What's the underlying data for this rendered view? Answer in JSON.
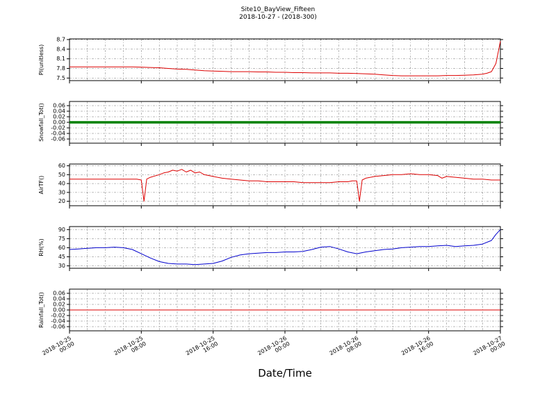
{
  "chart_data": {
    "type": "line",
    "title": "Site10_BayView_Fifteen",
    "subtitle": "2018-10-27 - (2018-300)",
    "xlabel": "Date/Time",
    "grid": "dash-dot",
    "legend": "none",
    "x_axis": {
      "min": 0,
      "max": 48,
      "unit": "hours since 2018-10-25 00:00",
      "grid_interval_hours": 2,
      "major_ticks": [
        {
          "h": 0,
          "date": "2018-10-25",
          "time": "00:00"
        },
        {
          "h": 8,
          "date": "2018-10-25",
          "time": "08:00"
        },
        {
          "h": 16,
          "date": "2018-10-25",
          "time": "16:00"
        },
        {
          "h": 24,
          "date": "2018-10-26",
          "time": "00:00"
        },
        {
          "h": 32,
          "date": "2018-10-26",
          "time": "08:00"
        },
        {
          "h": 40,
          "date": "2018-10-26",
          "time": "16:00"
        },
        {
          "h": 48,
          "date": "2018-10-27",
          "time": "00:00"
        }
      ]
    },
    "panels": [
      {
        "id": "pi",
        "ylabel": "PI(unitless)",
        "color": "#dd0000",
        "line_width": 1,
        "ylim": [
          7.42,
          8.72
        ],
        "yticks": [
          7.5,
          7.8,
          8.1,
          8.4,
          8.7
        ],
        "ytick_labels": [
          "7.5",
          "7.8",
          "8.1",
          "8.4",
          "8.7"
        ],
        "x": [
          0,
          1,
          2,
          3,
          4,
          5,
          6,
          7,
          8,
          9,
          10,
          11,
          12,
          13,
          14,
          15,
          16,
          17,
          18,
          19,
          20,
          21,
          22,
          23,
          24,
          25,
          26,
          27,
          28,
          29,
          30,
          31,
          32,
          33,
          34,
          35,
          36,
          37,
          38,
          39,
          40,
          41,
          42,
          43,
          44,
          45,
          46,
          46.5,
          47,
          47.5,
          47.75,
          48
        ],
        "y": [
          7.85,
          7.85,
          7.85,
          7.85,
          7.85,
          7.85,
          7.85,
          7.85,
          7.84,
          7.83,
          7.82,
          7.8,
          7.78,
          7.77,
          7.75,
          7.73,
          7.72,
          7.71,
          7.7,
          7.7,
          7.7,
          7.69,
          7.69,
          7.68,
          7.68,
          7.67,
          7.67,
          7.66,
          7.66,
          7.66,
          7.65,
          7.65,
          7.64,
          7.63,
          7.62,
          7.6,
          7.58,
          7.57,
          7.57,
          7.57,
          7.57,
          7.57,
          7.58,
          7.58,
          7.59,
          7.6,
          7.62,
          7.65,
          7.7,
          7.95,
          8.3,
          8.65
        ]
      },
      {
        "id": "snowfall",
        "ylabel": "Snowfall_Tot()",
        "color": "#008000",
        "line_width": 3.5,
        "ylim": [
          -0.075,
          0.075
        ],
        "yticks": [
          -0.06,
          -0.04,
          -0.02,
          0.0,
          0.02,
          0.04,
          0.06
        ],
        "ytick_labels": [
          "-0.06",
          "-0.04",
          "-0.02",
          "0.00",
          "0.02",
          "0.04",
          "0.06"
        ],
        "x": [
          0,
          48
        ],
        "y": [
          0,
          0
        ]
      },
      {
        "id": "airtf",
        "ylabel": "AirTF()",
        "color": "#dd0000",
        "line_width": 1,
        "ylim": [
          15,
          62
        ],
        "yticks": [
          20,
          30,
          40,
          50,
          60
        ],
        "ytick_labels": [
          "20",
          "30",
          "40",
          "50",
          "60"
        ],
        "x": [
          0,
          1,
          2,
          3,
          4,
          5,
          6,
          7,
          7.5,
          8,
          8.3,
          8.6,
          9,
          10,
          10.5,
          11,
          11.5,
          12,
          12.5,
          13,
          13.5,
          14,
          14.5,
          15,
          16,
          17,
          18,
          19,
          20,
          21,
          22,
          23,
          24,
          25,
          26,
          27,
          28,
          29,
          30,
          31,
          31.5,
          32,
          32.3,
          32.6,
          33,
          34,
          35,
          36,
          37,
          38,
          39,
          40,
          41,
          41.5,
          42,
          43,
          44,
          45,
          46,
          47,
          48
        ],
        "y": [
          45,
          45,
          45,
          45,
          45,
          45,
          45,
          45,
          45,
          44,
          20,
          45,
          47,
          50,
          52,
          53,
          55,
          54,
          56,
          53,
          55,
          52,
          53,
          50,
          48,
          46,
          45,
          44,
          43,
          43,
          42,
          42,
          42,
          42,
          41,
          41,
          41,
          41,
          42,
          42,
          43,
          43,
          20,
          44,
          46,
          48,
          49,
          50,
          50,
          51,
          50,
          50,
          49,
          46,
          48,
          47,
          46,
          45,
          45,
          44,
          44
        ]
      },
      {
        "id": "rh",
        "ylabel": "RH(%)",
        "color": "#0000cd",
        "line_width": 1,
        "ylim": [
          26,
          95
        ],
        "yticks": [
          30,
          45,
          60,
          75,
          90
        ],
        "ytick_labels": [
          "30",
          "45",
          "60",
          "75",
          "90"
        ],
        "x": [
          0,
          1,
          2,
          3,
          4,
          5,
          6,
          7,
          8,
          9,
          10,
          11,
          12,
          13,
          14,
          15,
          16,
          17,
          18,
          19,
          20,
          21,
          22,
          23,
          24,
          25,
          26,
          27,
          28,
          29,
          30,
          31,
          32,
          33,
          34,
          35,
          36,
          37,
          38,
          39,
          40,
          41,
          42,
          43,
          44,
          45,
          46,
          47,
          47.5,
          48
        ],
        "y": [
          57,
          58,
          59,
          60,
          60,
          61,
          60,
          57,
          50,
          43,
          37,
          34,
          33,
          33,
          32,
          33,
          34,
          38,
          44,
          48,
          50,
          51,
          52,
          52,
          53,
          53,
          54,
          57,
          61,
          62,
          58,
          53,
          50,
          53,
          55,
          57,
          58,
          60,
          61,
          62,
          62,
          63,
          64,
          62,
          63,
          64,
          66,
          72,
          82,
          90
        ]
      },
      {
        "id": "rainfall",
        "ylabel": "Rainfall_Tot()",
        "color": "#dd0000",
        "line_width": 1,
        "ylim": [
          -0.075,
          0.075
        ],
        "yticks": [
          -0.06,
          -0.04,
          -0.02,
          0.0,
          0.02,
          0.04,
          0.06
        ],
        "ytick_labels": [
          "-0.06",
          "-0.04",
          "-0.02",
          "0.00",
          "0.02",
          "0.04",
          "0.06"
        ],
        "x": [
          0,
          48
        ],
        "y": [
          0,
          0
        ]
      }
    ]
  }
}
